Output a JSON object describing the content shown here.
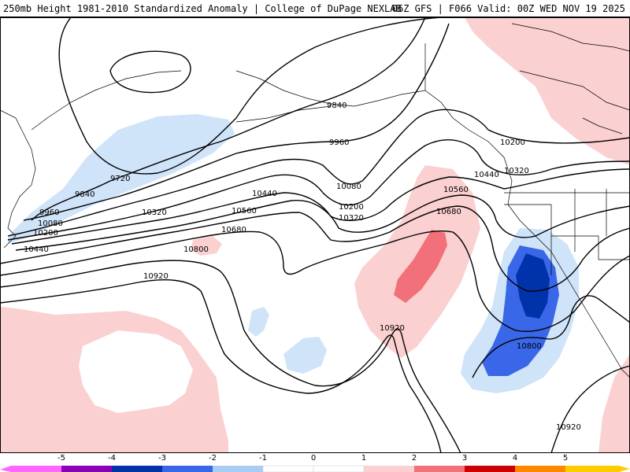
{
  "header": {
    "title": "250mb Height 1981-2010 Standardized Anomaly | College of DuPage NEXLAB",
    "run_info": "06Z GFS | F066 Valid: 00Z WED NOV 19 2025"
  },
  "colors": {
    "background": "#ffffff",
    "coastline": "#000000",
    "contour": "#000000",
    "anom_neg5": "#ff66ff",
    "anom_neg4": "#8a00b8",
    "anom_neg3": "#0033aa",
    "anom_neg2": "#3a66e8",
    "anom_neg1": "#a9ccf4",
    "anom_neg05": "#cfe3f9",
    "anom_pos05": "#fbd0d0",
    "anom_pos1": "#f8b4b4",
    "anom_pos2": "#f2707a",
    "anom_pos3": "#e84040",
    "anom_pos4": "#cc0000",
    "anom_pos5": "#ffaa00"
  },
  "contour_labels": [
    {
      "text": "9840"
    },
    {
      "text": "9960"
    },
    {
      "text": "10200"
    },
    {
      "text": "10320"
    },
    {
      "text": "10440"
    },
    {
      "text": "10560"
    },
    {
      "text": "10680"
    },
    {
      "text": "9720"
    },
    {
      "text": "9840"
    },
    {
      "text": "9960"
    },
    {
      "text": "10080"
    },
    {
      "text": "10200"
    },
    {
      "text": "10440"
    },
    {
      "text": "10320"
    },
    {
      "text": "10440"
    },
    {
      "text": "10560"
    },
    {
      "text": "10680"
    },
    {
      "text": "10800"
    },
    {
      "text": "10920"
    },
    {
      "text": "10080"
    },
    {
      "text": "10200"
    },
    {
      "text": "10320"
    },
    {
      "text": "10920"
    },
    {
      "text": "10800"
    },
    {
      "text": "10920"
    }
  ],
  "colorbar": {
    "labels": [
      "-5",
      "-4",
      "-3",
      "-2",
      "-1",
      "0",
      "1",
      "2",
      "3",
      "4",
      "5"
    ]
  }
}
